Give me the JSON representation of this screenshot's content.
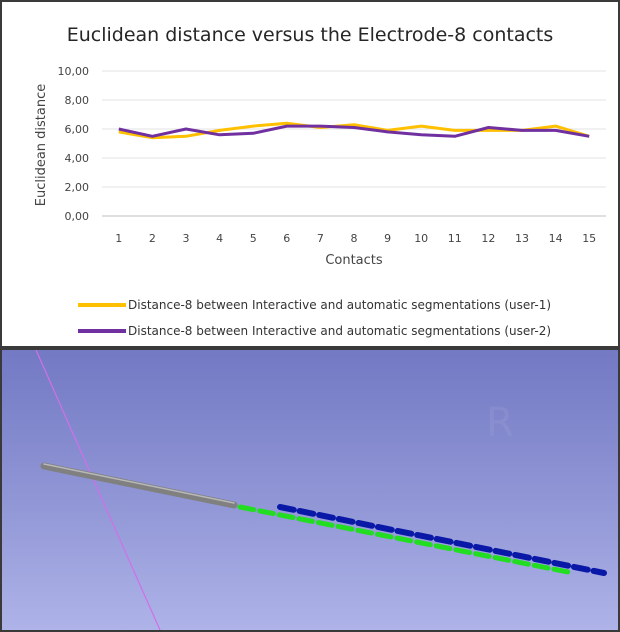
{
  "chart_data": {
    "type": "line",
    "title": "Euclidean distance versus the Electrode-8 contacts",
    "xlabel": "Contacts",
    "ylabel": "Euclidean distance",
    "x": [
      "1",
      "2",
      "3",
      "4",
      "5",
      "6",
      "7",
      "8",
      "9",
      "10",
      "11",
      "12",
      "13",
      "14",
      "15"
    ],
    "ylim": [
      0,
      10
    ],
    "yticks": [
      "0,00",
      "2,00",
      "4,00",
      "6,00",
      "8,00",
      "10,00"
    ],
    "grid": true,
    "legend_position": "bottom",
    "series": [
      {
        "name": "Distance-8 between Interactive and automatic segmentations (user-1)",
        "color": "#ffc000",
        "values": [
          5.8,
          5.4,
          5.5,
          5.9,
          6.2,
          6.4,
          6.1,
          6.3,
          5.9,
          6.2,
          5.9,
          5.9,
          5.9,
          6.2,
          5.5
        ]
      },
      {
        "name": "Distance-8 between Interactive and automatic segmentations (user-2)",
        "color": "#7030a0",
        "values": [
          6.0,
          5.5,
          6.0,
          5.6,
          5.7,
          6.2,
          6.2,
          6.1,
          5.8,
          5.6,
          5.5,
          6.1,
          5.9,
          5.9,
          5.5
        ]
      }
    ]
  },
  "scene": {
    "background_top": "#7379c3",
    "background_bottom": "#aeb3e8",
    "electrode_color": "#808080",
    "segmentation_1_color": "#22dd22",
    "segmentation_2_color": "#0a18a8",
    "guide_line_color": "#d070e8"
  }
}
